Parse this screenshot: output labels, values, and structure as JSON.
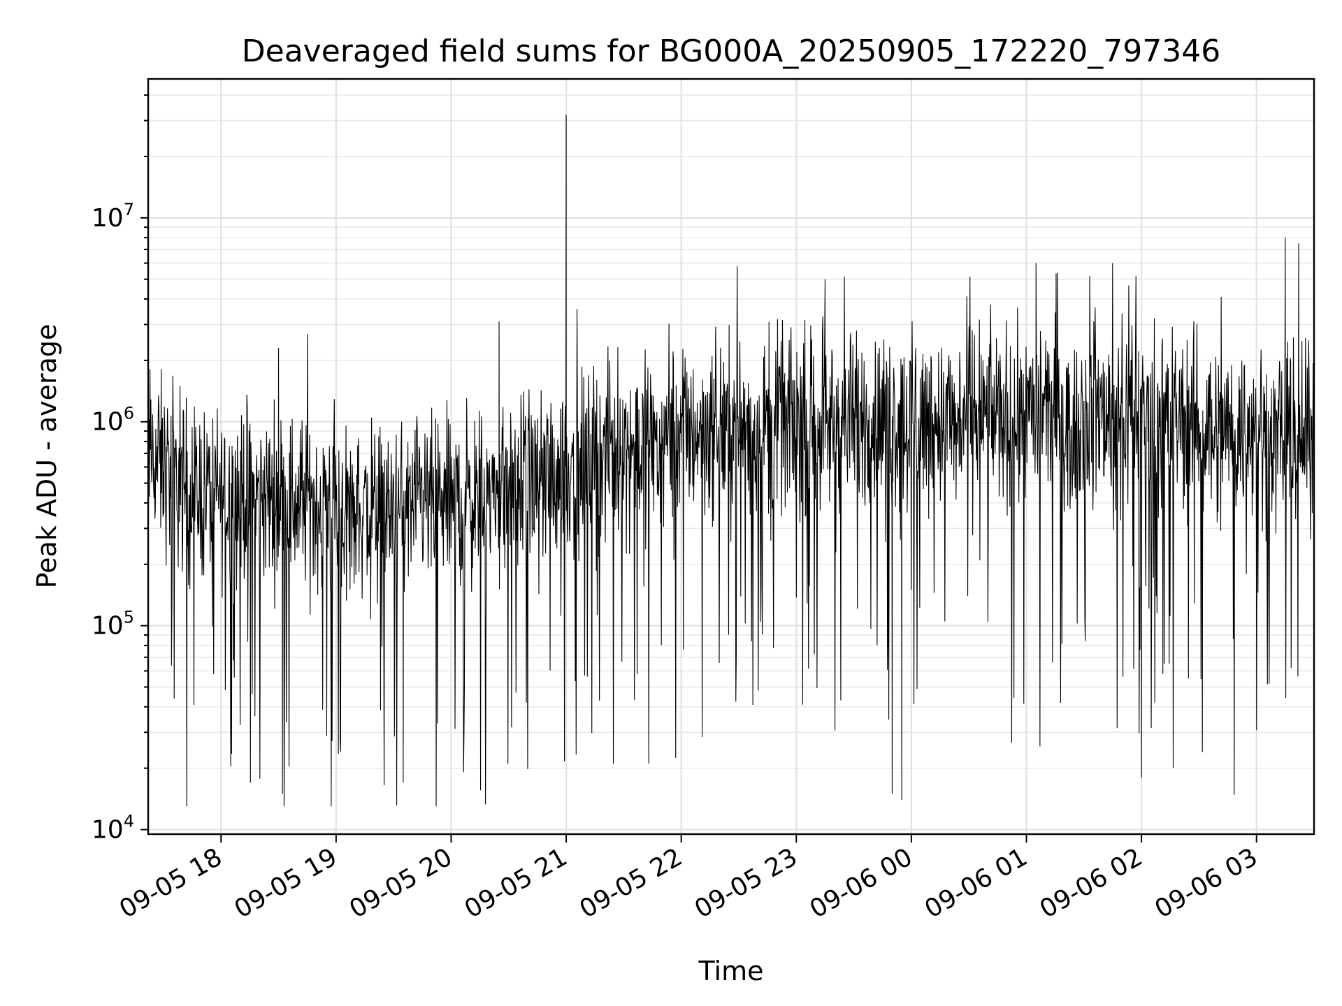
{
  "chart_data": {
    "type": "line",
    "title": "Deaveraged field sums for BG000A_20250905_172220_797346",
    "xlabel": "Time",
    "ylabel": "Peak ADU - average",
    "xlim": [
      "2025-09-05 17:22",
      "2025-09-06 03:30"
    ],
    "ylim": [
      9500,
      48000000
    ],
    "y_scale": "log",
    "grid": true,
    "x_ticks": [
      "09-05 18",
      "09-05 19",
      "09-05 20",
      "09-05 21",
      "09-05 22",
      "09-05 23",
      "09-06 00",
      "09-06 01",
      "09-06 02",
      "09-06 03"
    ],
    "x_tick_times": [
      "2025-09-05 18:00",
      "2025-09-05 19:00",
      "2025-09-05 20:00",
      "2025-09-05 21:00",
      "2025-09-05 22:00",
      "2025-09-05 23:00",
      "2025-09-06 00:00",
      "2025-09-06 01:00",
      "2025-09-06 02:00",
      "2025-09-06 03:00"
    ],
    "y_ticks": [
      {
        "value": 10000,
        "base": "10",
        "exp": "4"
      },
      {
        "value": 100000,
        "base": "10",
        "exp": "5"
      },
      {
        "value": 1000000,
        "base": "10",
        "exp": "6"
      },
      {
        "value": 10000000,
        "base": "10",
        "exp": "7"
      }
    ],
    "line_color": "#000000",
    "series_trend": {
      "time": [
        "2025-09-05 17:22",
        "2025-09-05 17:45",
        "2025-09-05 18:30",
        "2025-09-05 19:00",
        "2025-09-05 19:30",
        "2025-09-05 20:00",
        "2025-09-05 20:30",
        "2025-09-05 21:00",
        "2025-09-05 21:30",
        "2025-09-05 22:00",
        "2025-09-05 23:00",
        "2025-09-06 00:00",
        "2025-09-06 01:00",
        "2025-09-06 02:00",
        "2025-09-06 02:50",
        "2025-09-06 03:30"
      ],
      "median": [
        700000,
        450000,
        420000,
        380000,
        360000,
        400000,
        450000,
        600000,
        750000,
        900000,
        1000000,
        1000000,
        1100000,
        1100000,
        900000,
        800000
      ]
    },
    "notable_points": [
      {
        "time": "2025-09-05 21:00",
        "value": 32000000
      },
      {
        "time": "2025-09-06 03:15",
        "value": 8000000
      },
      {
        "time": "2025-09-06 03:22",
        "value": 7500000
      },
      {
        "time": "2025-09-06 01:05",
        "value": 6000000
      },
      {
        "time": "2025-09-05 23:15",
        "value": 5000000
      },
      {
        "time": "2025-09-05 18:30",
        "value": 2300000
      },
      {
        "time": "2025-09-05 20:25",
        "value": 3100000
      },
      {
        "time": "2025-09-05 18:32",
        "value": 15000
      },
      {
        "time": "2025-09-05 19:35",
        "value": 17000
      },
      {
        "time": "2025-09-05 23:50",
        "value": 15000
      },
      {
        "time": "2025-09-05 23:55",
        "value": 14000
      },
      {
        "time": "2025-09-06 02:00",
        "value": 18000
      }
    ]
  }
}
